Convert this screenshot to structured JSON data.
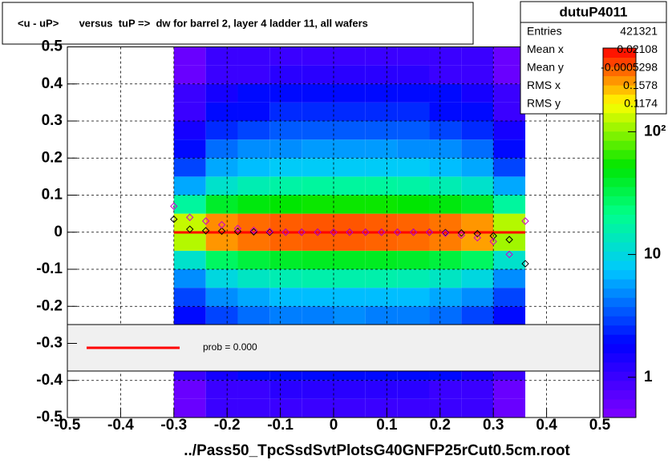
{
  "chart_data": {
    "type": "heatmap",
    "title": "<u - uP>       versus  tuP =>  dw for barrel 2, layer 4 ladder 11, all wafers",
    "x_label": "../Pass50_TpcSsdSvtPlotsG40GNFP25rCut0.5cm.root",
    "xlim": [
      -0.5,
      0.5
    ],
    "ylim": [
      -0.5,
      0.5
    ],
    "xticks": [
      -0.5,
      -0.4,
      -0.3,
      -0.2,
      -0.1,
      0,
      0.1,
      0.2,
      0.3,
      0.4,
      0.5
    ],
    "yticks": [
      -0.5,
      -0.4,
      -0.3,
      -0.2,
      -0.1,
      0,
      0.1,
      0.2,
      0.3,
      0.4,
      0.5
    ],
    "grid": true,
    "log_z": true,
    "zlim": [
      0.47,
      480
    ],
    "zticks": [
      1,
      10,
      {
        "value": 100,
        "label": "10²"
      }
    ],
    "heatmap": {
      "xbins": [
        -0.3,
        -0.24,
        -0.18,
        -0.12,
        -0.06,
        0,
        0.06,
        0.12,
        0.18,
        0.24,
        0.3,
        0.36
      ],
      "ybins": [
        -0.5,
        -0.45,
        -0.4,
        -0.35,
        -0.3,
        -0.25,
        -0.2,
        -0.15,
        -0.1,
        -0.05,
        0,
        0.05,
        0.1,
        0.15,
        0.2,
        0.25,
        0.3,
        0.35,
        0.4,
        0.45,
        0.5
      ],
      "z": [
        [
          0.6,
          1,
          1,
          1,
          1,
          1,
          1,
          1,
          1,
          1,
          0.6
        ],
        [
          0.6,
          1,
          1,
          1.2,
          1.2,
          1.2,
          1.2,
          1.2,
          1,
          1,
          0.6
        ],
        [
          1,
          1.5,
          2,
          2,
          2,
          2,
          2,
          2,
          2,
          1.5,
          1
        ],
        [
          1,
          2,
          2,
          2.5,
          2.5,
          2.5,
          2.5,
          2.5,
          2,
          2,
          1
        ],
        [
          1.5,
          2.5,
          3,
          3,
          3.5,
          3.5,
          3.5,
          3,
          3,
          2.5,
          1.5
        ],
        [
          2,
          3,
          4,
          4.5,
          4.5,
          5,
          4.5,
          4.5,
          4,
          3,
          2
        ],
        [
          3,
          5,
          6,
          7,
          7,
          7,
          7,
          7,
          6,
          5,
          3
        ],
        [
          5,
          10,
          13,
          15,
          16,
          16,
          16,
          15,
          13,
          10,
          5
        ],
        [
          12,
          28,
          35,
          40,
          42,
          42,
          42,
          40,
          35,
          28,
          12
        ],
        [
          120,
          260,
          300,
          320,
          330,
          330,
          320,
          310,
          290,
          250,
          110
        ],
        [
          130,
          270,
          310,
          330,
          340,
          340,
          330,
          320,
          300,
          260,
          120
        ],
        [
          18,
          40,
          48,
          52,
          55,
          55,
          55,
          52,
          48,
          40,
          18
        ],
        [
          6,
          12,
          15,
          17,
          18,
          18,
          18,
          17,
          15,
          12,
          6
        ],
        [
          3,
          6,
          7,
          8,
          8,
          8,
          8,
          8,
          7,
          6,
          3
        ],
        [
          2,
          4,
          5,
          5,
          5.5,
          5.5,
          5.5,
          5,
          5,
          4,
          2
        ],
        [
          1.5,
          2.5,
          3,
          3.5,
          3.5,
          3.5,
          3.5,
          3.5,
          3,
          2.5,
          1.5
        ],
        [
          1,
          2,
          2,
          2.5,
          2.5,
          2.5,
          2.5,
          2.5,
          2,
          2,
          1
        ],
        [
          1,
          1.5,
          2,
          2,
          2,
          2,
          2,
          2,
          2,
          1.5,
          1
        ],
        [
          0.6,
          1,
          1,
          1.2,
          1.2,
          1.2,
          1.2,
          1.2,
          1,
          1,
          0.6
        ],
        [
          0.6,
          1,
          1,
          1,
          1,
          1,
          1,
          1,
          1,
          1,
          0.6
        ]
      ]
    },
    "series": [
      {
        "color": "#000000",
        "x": [
          -0.3,
          -0.27,
          -0.24,
          -0.21,
          -0.18,
          -0.15,
          -0.12,
          -0.09,
          -0.06,
          -0.03,
          0,
          0.03,
          0.06,
          0.09,
          0.12,
          0.15,
          0.18,
          0.21,
          0.24,
          0.27,
          0.3,
          0.33,
          0.36
        ],
        "values": [
          0.035,
          0.008,
          0.004,
          0.003,
          0.002,
          0.001,
          0,
          0,
          0,
          0,
          0,
          0,
          0,
          0,
          0,
          0,
          0,
          -0.001,
          -0.002,
          -0.004,
          -0.01,
          -0.02,
          -0.085
        ]
      },
      {
        "color": "#cc00cc",
        "x": [
          -0.3,
          -0.27,
          -0.24,
          -0.21,
          -0.18,
          -0.15,
          -0.12,
          -0.09,
          -0.06,
          -0.03,
          0,
          0.03,
          0.06,
          0.09,
          0.12,
          0.15,
          0.18,
          0.21,
          0.24,
          0.27,
          0.3,
          0.33,
          0.36
        ],
        "values": [
          0.07,
          0.04,
          0.03,
          0.02,
          0.01,
          0.005,
          0.002,
          0,
          0,
          0,
          0,
          0,
          0,
          0,
          0,
          0,
          0,
          -0.003,
          -0.008,
          -0.015,
          -0.025,
          -0.06,
          0.03
        ]
      }
    ],
    "fit": {
      "color": "#ff0000",
      "x": [
        -0.3,
        0.36
      ],
      "values": [
        -0.0005,
        -0.0005
      ]
    },
    "legend_text": "prob = 0.000",
    "stats": {
      "title": "dutuP4011",
      "rows": [
        [
          "Entries",
          "421321"
        ],
        [
          "Mean x",
          "0.02108"
        ],
        [
          "Mean y",
          "-0.0005298"
        ],
        [
          "RMS x",
          "0.1578"
        ],
        [
          "RMS y",
          "0.1174"
        ]
      ]
    }
  }
}
